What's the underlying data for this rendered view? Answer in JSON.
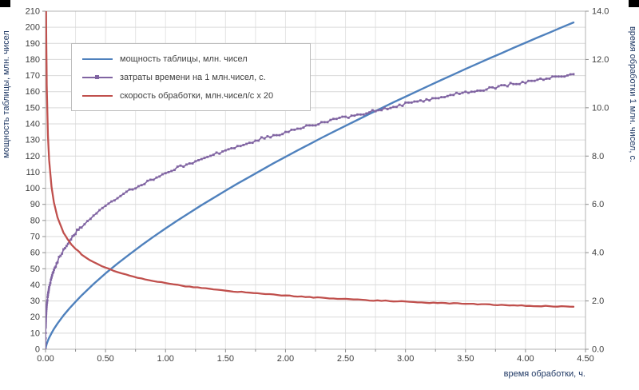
{
  "chart_data": {
    "type": "line",
    "title": "",
    "x_axis": {
      "title": "время обработки, ч.",
      "min": 0,
      "max": 4.5,
      "major_step": 0.5,
      "minor_step": 0.25,
      "labels": [
        "0.00",
        "0.50",
        "1.00",
        "1.50",
        "2.00",
        "2.50",
        "3.00",
        "3.50",
        "4.00",
        "4.50"
      ]
    },
    "left_axis": {
      "title": "мощность таблицы, млн. чисел",
      "min": 0,
      "max": 210,
      "step": 10,
      "labels": [
        "0",
        "10",
        "20",
        "30",
        "40",
        "50",
        "60",
        "70",
        "80",
        "90",
        "100",
        "110",
        "120",
        "130",
        "140",
        "150",
        "160",
        "170",
        "180",
        "190",
        "200",
        "210"
      ]
    },
    "right_axis": {
      "title": "время обработки 1 млн. чисел, с.",
      "min": 0,
      "max": 14,
      "step": 2,
      "labels": [
        "0.0",
        "2.0",
        "4.0",
        "6.0",
        "8.0",
        "10.0",
        "12.0",
        "14.0"
      ]
    },
    "grid": "horizontal-and-vertical",
    "legend_position": "top-left-inside",
    "style": {
      "h_grid": "#d9d9d9",
      "v_grid": "#e4e4e4",
      "border": "#b3b3b3",
      "tick": "#8c8c8c",
      "text": "#404040",
      "title": "#1f3864"
    },
    "x": [
      0,
      0.001,
      0.003,
      0.005,
      0.01,
      0.02,
      0.03,
      0.05,
      0.07,
      0.1,
      0.15,
      0.2,
      0.25,
      0.3,
      0.4,
      0.5,
      0.6,
      0.7,
      0.8,
      0.9,
      1.0,
      1.1,
      1.2,
      1.3,
      1.4,
      1.5,
      1.6,
      1.7,
      1.8,
      1.9,
      2.0,
      2.1,
      2.2,
      2.3,
      2.4,
      2.5,
      2.6,
      2.7,
      2.8,
      2.9,
      3.0,
      3.1,
      3.2,
      3.3,
      3.4,
      3.5,
      3.6,
      3.7,
      3.8,
      3.9,
      4.0,
      4.1,
      4.2,
      4.3,
      4.4
    ],
    "series": [
      {
        "name": "мощность таблицы, млн. чисел",
        "axis": "left",
        "color": "#4F81BD",
        "marker": false,
        "width": 2.4,
        "upsample": 1,
        "values": [
          0,
          0.7,
          1.5,
          2.1,
          3.4,
          5.4,
          7.1,
          10.0,
          12.6,
          16.0,
          21.0,
          25.4,
          29.5,
          33.4,
          40.5,
          47.1,
          53.2,
          59.0,
          64.6,
          69.9,
          75.0,
          80.0,
          84.8,
          89.5,
          94.0,
          98.5,
          102.9,
          107.1,
          111.3,
          115.5,
          119.5,
          123.5,
          127.4,
          131.3,
          135.1,
          138.8,
          142.5,
          146.2,
          149.8,
          153.4,
          156.9,
          160.4,
          163.9,
          167.3,
          170.7,
          174.1,
          177.4,
          180.7,
          183.9,
          187.2,
          190.4,
          193.6,
          196.7,
          199.9,
          203.0
        ]
      },
      {
        "name": "затраты времени на 1 млн.чисел, с.",
        "axis": "right",
        "color": "#8064A2",
        "marker": true,
        "marker_size": 2.8,
        "width": 1.7,
        "upsample": 4,
        "jitter": 0.09,
        "quantize": 0.045,
        "values": [
          0,
          0.92,
          1.28,
          1.49,
          1.83,
          2.26,
          2.55,
          2.97,
          3.29,
          3.66,
          4.13,
          4.5,
          4.82,
          5.09,
          5.55,
          5.93,
          6.26,
          6.56,
          6.83,
          7.07,
          7.3,
          7.51,
          7.71,
          7.9,
          8.08,
          8.24,
          8.41,
          8.56,
          8.71,
          8.85,
          8.99,
          9.12,
          9.25,
          9.37,
          9.49,
          9.61,
          9.72,
          9.83,
          9.94,
          10.05,
          10.15,
          10.25,
          10.35,
          10.44,
          10.54,
          10.63,
          10.72,
          10.81,
          10.9,
          10.98,
          11.06,
          11.15,
          11.23,
          11.31,
          11.39
        ]
      },
      {
        "name": "скорость обработки, млн.чисел/с x 20",
        "axis": "right",
        "color": "#C0504D",
        "marker": false,
        "width": 2.3,
        "upsample": 3,
        "jitter": 0.035,
        "values": [
          null,
          21.8,
          15.65,
          13.42,
          10.93,
          8.85,
          7.84,
          6.73,
          6.08,
          5.46,
          4.84,
          4.44,
          4.15,
          3.93,
          3.6,
          3.37,
          3.19,
          3.05,
          2.93,
          2.83,
          2.74,
          2.66,
          2.59,
          2.53,
          2.48,
          2.43,
          2.38,
          2.34,
          2.3,
          2.26,
          2.22,
          2.19,
          2.16,
          2.13,
          2.11,
          2.08,
          2.06,
          2.03,
          2.01,
          1.99,
          1.97,
          1.95,
          1.93,
          1.92,
          1.9,
          1.88,
          1.87,
          1.85,
          1.83,
          1.82,
          1.81,
          1.79,
          1.78,
          1.77,
          1.76
        ]
      }
    ]
  }
}
